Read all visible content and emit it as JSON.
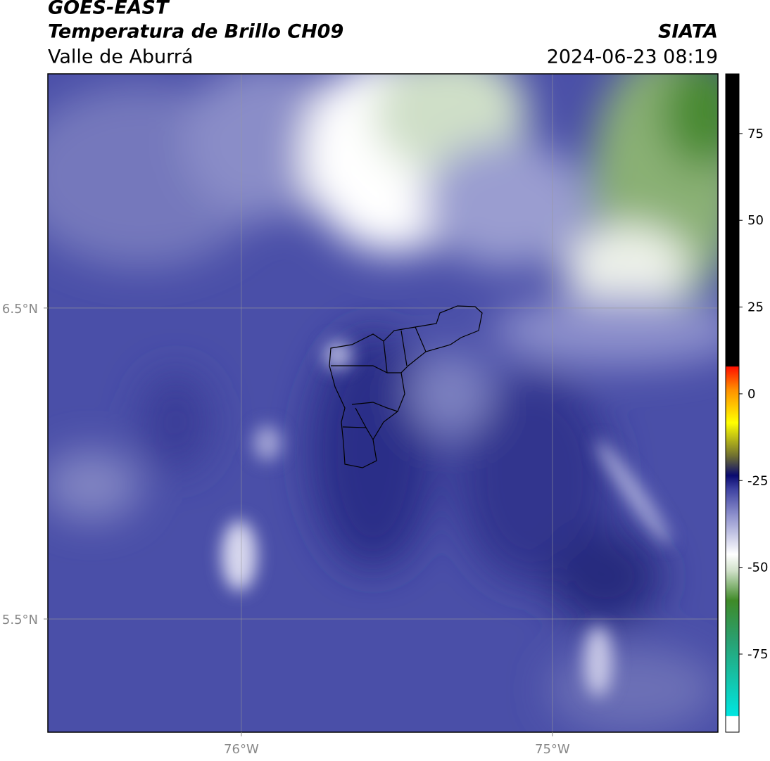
{
  "header": {
    "title": "GOES-EAST",
    "subtitle": "Temperatura de Brillo CH09",
    "region": "Valle de Aburrá",
    "source": "SIATA",
    "datetime": "2024-06-23 08:19"
  },
  "map": {
    "xlim": [
      -76.622,
      -74.468
    ],
    "ylim": [
      5.136,
      7.253
    ],
    "xticks": [
      {
        "value": -76,
        "label": "76°W"
      },
      {
        "value": -75,
        "label": "75°W"
      }
    ],
    "yticks": [
      {
        "value": 6.5,
        "label": "6.5°N"
      },
      {
        "value": 5.5,
        "label": "5.5°N"
      }
    ],
    "grid": true
  },
  "colorbar": {
    "lim": [
      -97.5,
      92.2
    ],
    "ticks": [
      75,
      50,
      25,
      0,
      -25,
      -50,
      -75
    ]
  }
}
